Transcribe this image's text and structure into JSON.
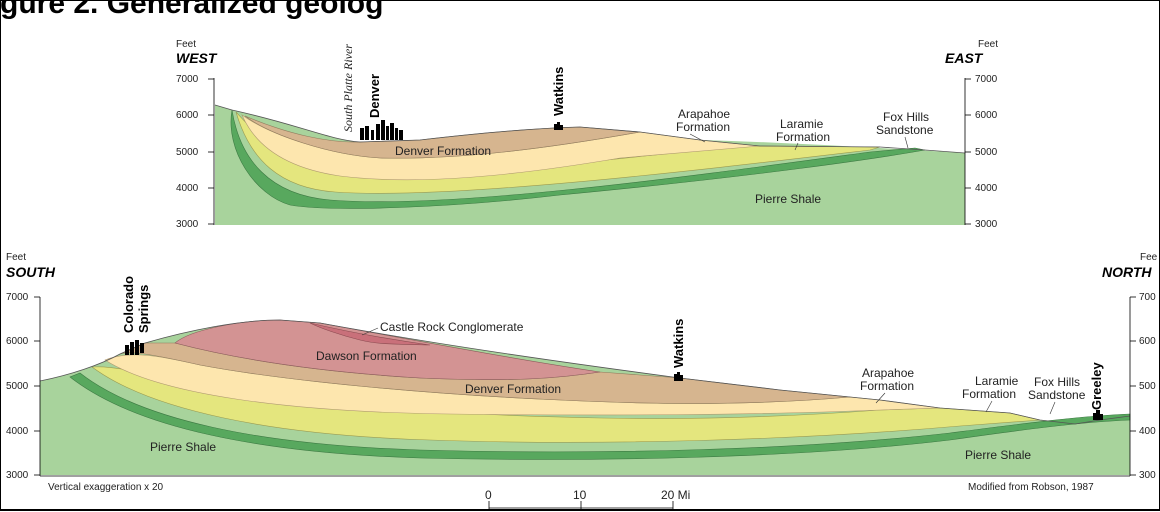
{
  "title": "gure 2. Generalized geolog",
  "top_section": {
    "units_label_left": "Feet",
    "units_label_right": "Feet",
    "direction_left": "WEST",
    "direction_right": "EAST",
    "ticks_left": [
      "7000",
      "6000",
      "5000",
      "4000",
      "3000"
    ],
    "ticks_right": [
      "7000",
      "6000",
      "5000",
      "4000",
      "3000"
    ],
    "river": "South Platte River",
    "cities": [
      "Denver",
      "Watkins"
    ],
    "formations": {
      "denver": "Denver Formation",
      "arapahoe": [
        "Arapahoe",
        "Formation"
      ],
      "laramie": [
        "Laramie",
        "Formation"
      ],
      "fox_hills": [
        "Fox Hills",
        "Sandstone"
      ],
      "pierre": "Pierre Shale"
    }
  },
  "bottom_section": {
    "units_label_left": "Feet",
    "units_label_right": "Fee",
    "direction_left": "SOUTH",
    "direction_right": "NORTH",
    "ticks_left": [
      "7000",
      "6000",
      "5000",
      "4000",
      "3000"
    ],
    "ticks_right": [
      "700",
      "600",
      "500",
      "400",
      "300"
    ],
    "cities": [
      "Colorado",
      "Springs",
      "Watkins",
      "Greeley"
    ],
    "formations": {
      "castle_rock": "Castle Rock Conglomerate",
      "dawson": "Dawson Formation",
      "denver": "Denver Formation",
      "arapahoe": [
        "Arapahoe",
        "Formation"
      ],
      "laramie": [
        "Laramie",
        "Formation"
      ],
      "fox_hills": [
        "Fox Hills",
        "Sandstone"
      ],
      "pierre_left": "Pierre Shale",
      "pierre_right": "Pierre Shale"
    },
    "note_left": "Vertical exaggeration x 20",
    "note_right": "Modified from Robson, 1987",
    "scale": {
      "labels": [
        "0",
        "10",
        "20 Mi"
      ]
    }
  },
  "colors": {
    "pierre": "#a8d39c",
    "fox_hills": "#58a85e",
    "laramie": "#e4e67e",
    "arapahoe": "#fde6ae",
    "denver": "#d6b58f",
    "dawson": "#d39393",
    "castle_rock": "#c9707a"
  }
}
